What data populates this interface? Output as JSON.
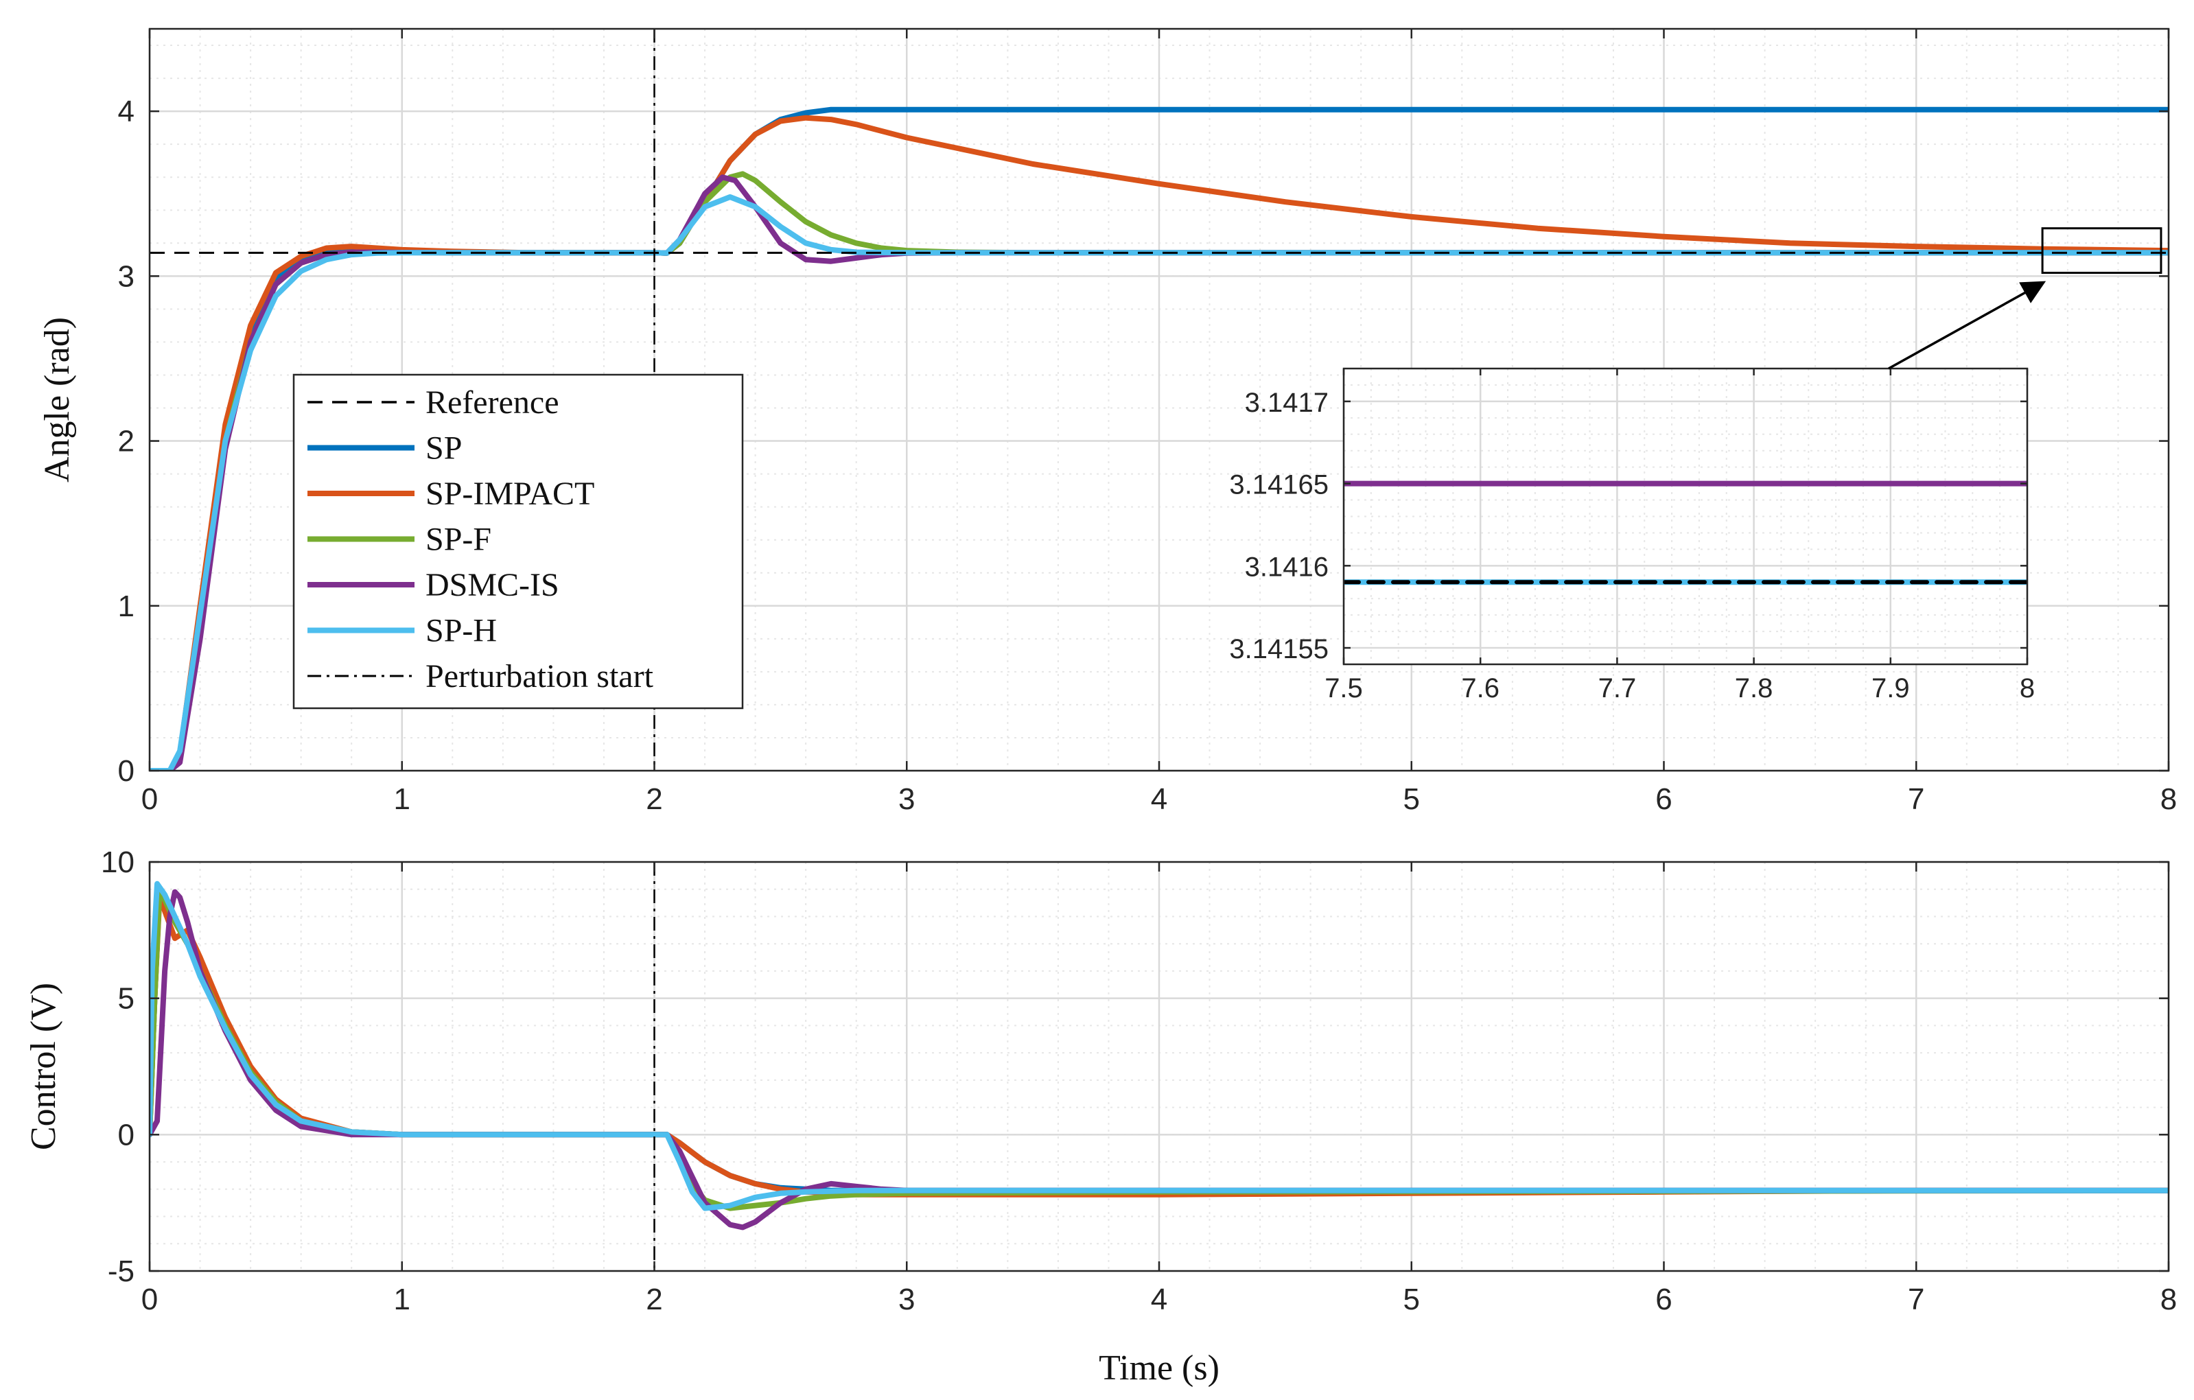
{
  "colors": {
    "SP": "#0072BD",
    "SP-IMPACT": "#D95319",
    "SP-F": "#77AC30",
    "DSMC-IS": "#7E2F8E",
    "SP-H": "#4DBEEE",
    "Reference": "#000000",
    "grid": "#d9d9d9"
  },
  "chart_data": [
    {
      "type": "line",
      "id": "angle",
      "title": "",
      "xlabel": "",
      "ylabel": "Angle (rad)",
      "xlim": [
        0,
        8
      ],
      "ylim": [
        0,
        4.5
      ],
      "xticks": [
        0,
        1,
        2,
        3,
        4,
        5,
        6,
        7,
        8
      ],
      "xtick_labels": [
        "0",
        "1",
        "2",
        "3",
        "4",
        "5",
        "6",
        "7",
        "8"
      ],
      "yticks": [
        0,
        1,
        2,
        3,
        4
      ],
      "ytick_labels": [
        "0",
        "1",
        "2",
        "3",
        "4"
      ],
      "grid": true,
      "legend": {
        "placement": "center-left",
        "entries": [
          "Reference",
          "SP",
          "SP-IMPACT",
          "SP-F",
          "DSMC-IS",
          "SP-H",
          "Perturbation start"
        ]
      },
      "reference": {
        "name": "Reference",
        "value": 3.1416,
        "style": "dashed"
      },
      "vline": {
        "name": "Perturbation start",
        "x": 2,
        "style": "dashdot"
      },
      "series": [
        {
          "name": "SP",
          "x": [
            0,
            0.08,
            0.12,
            0.2,
            0.3,
            0.4,
            0.5,
            0.6,
            0.7,
            0.8,
            0.9,
            1.0,
            1.2,
            1.5,
            2.0,
            2.05,
            2.1,
            2.2,
            2.3,
            2.4,
            2.5,
            2.6,
            2.7,
            2.8,
            3.0,
            4.0,
            5.0,
            6.0,
            7.0,
            8.0
          ],
          "values": [
            0,
            0,
            0.1,
            0.95,
            2.05,
            2.65,
            2.98,
            3.1,
            3.16,
            3.17,
            3.16,
            3.15,
            3.145,
            3.142,
            3.142,
            3.14,
            3.2,
            3.45,
            3.7,
            3.86,
            3.95,
            3.99,
            4.01,
            4.01,
            4.01,
            4.01,
            4.01,
            4.01,
            4.01,
            4.01
          ]
        },
        {
          "name": "SP-IMPACT",
          "x": [
            0,
            0.08,
            0.12,
            0.2,
            0.3,
            0.4,
            0.5,
            0.6,
            0.7,
            0.8,
            0.9,
            1.0,
            1.2,
            1.5,
            2.0,
            2.05,
            2.1,
            2.2,
            2.3,
            2.4,
            2.5,
            2.6,
            2.7,
            2.8,
            3.0,
            3.5,
            4.0,
            4.5,
            5.0,
            5.5,
            6.0,
            6.5,
            7.0,
            7.5,
            8.0
          ],
          "values": [
            0,
            0,
            0.1,
            1.0,
            2.1,
            2.7,
            3.02,
            3.12,
            3.17,
            3.18,
            3.17,
            3.16,
            3.15,
            3.142,
            3.142,
            3.14,
            3.2,
            3.45,
            3.7,
            3.86,
            3.94,
            3.96,
            3.95,
            3.92,
            3.84,
            3.68,
            3.56,
            3.45,
            3.36,
            3.29,
            3.24,
            3.2,
            3.18,
            3.165,
            3.155
          ]
        },
        {
          "name": "SP-F",
          "x": [
            0,
            0.08,
            0.12,
            0.2,
            0.3,
            0.4,
            0.5,
            0.6,
            0.7,
            0.8,
            0.9,
            1.0,
            1.2,
            1.5,
            2.0,
            2.05,
            2.1,
            2.2,
            2.3,
            2.35,
            2.4,
            2.5,
            2.6,
            2.7,
            2.8,
            2.9,
            3.0,
            3.2,
            3.5,
            4.0,
            8.0
          ],
          "values": [
            0,
            0,
            0.08,
            0.9,
            2.0,
            2.6,
            2.95,
            3.08,
            3.13,
            3.145,
            3.145,
            3.143,
            3.142,
            3.142,
            3.142,
            3.14,
            3.2,
            3.45,
            3.6,
            3.62,
            3.58,
            3.45,
            3.33,
            3.25,
            3.2,
            3.17,
            3.155,
            3.145,
            3.142,
            3.142,
            3.142
          ]
        },
        {
          "name": "DSMC-IS",
          "x": [
            0,
            0.08,
            0.12,
            0.2,
            0.3,
            0.4,
            0.5,
            0.6,
            0.7,
            0.8,
            0.9,
            1.0,
            1.2,
            1.5,
            2.0,
            2.05,
            2.1,
            2.2,
            2.27,
            2.32,
            2.4,
            2.5,
            2.6,
            2.7,
            2.8,
            2.9,
            3.0,
            3.2,
            4.0,
            8.0
          ],
          "values": [
            0,
            0,
            0.05,
            0.8,
            1.95,
            2.6,
            2.95,
            3.08,
            3.13,
            3.145,
            3.145,
            3.143,
            3.142,
            3.142,
            3.142,
            3.14,
            3.22,
            3.5,
            3.6,
            3.58,
            3.42,
            3.2,
            3.1,
            3.09,
            3.11,
            3.13,
            3.14,
            3.142,
            3.142,
            3.142
          ]
        },
        {
          "name": "SP-H",
          "x": [
            0,
            0.08,
            0.12,
            0.2,
            0.3,
            0.4,
            0.5,
            0.6,
            0.7,
            0.8,
            0.9,
            1.0,
            1.2,
            1.5,
            2.0,
            2.05,
            2.1,
            2.2,
            2.3,
            2.4,
            2.5,
            2.6,
            2.7,
            2.8,
            3.0,
            4.0,
            8.0
          ],
          "values": [
            0,
            0,
            0.12,
            0.95,
            2.0,
            2.55,
            2.88,
            3.03,
            3.1,
            3.13,
            3.14,
            3.142,
            3.142,
            3.142,
            3.142,
            3.14,
            3.22,
            3.42,
            3.48,
            3.42,
            3.3,
            3.2,
            3.16,
            3.145,
            3.142,
            3.142,
            3.142
          ]
        }
      ]
    },
    {
      "type": "line",
      "id": "angle-zoom-inset",
      "title": "",
      "xlabel": "",
      "ylabel": "",
      "xlim": [
        7.5,
        8
      ],
      "ylim": [
        3.14154,
        3.14172
      ],
      "xticks": [
        7.5,
        7.6,
        7.7,
        7.8,
        7.9,
        8
      ],
      "xtick_labels": [
        "7.5",
        "7.6",
        "7.7",
        "7.8",
        "7.9",
        "8"
      ],
      "yticks": [
        3.14155,
        3.1416,
        3.14165,
        3.1417
      ],
      "ytick_labels": [
        "3.14155",
        "3.1416",
        "3.14165",
        "3.1417"
      ],
      "grid": true,
      "series": [
        {
          "name": "DSMC-IS",
          "x": [
            7.5,
            8
          ],
          "values": [
            3.14165,
            3.14165
          ]
        },
        {
          "name": "SP-H",
          "x": [
            7.5,
            8
          ],
          "values": [
            3.14159,
            3.14159
          ]
        },
        {
          "name": "Reference",
          "x": [
            7.5,
            8
          ],
          "values": [
            3.14159,
            3.14159
          ]
        }
      ]
    },
    {
      "type": "line",
      "id": "control",
      "title": "",
      "xlabel": "Time (s)",
      "ylabel": "Control (V)",
      "xlim": [
        0,
        8
      ],
      "ylim": [
        -5,
        10
      ],
      "xticks": [
        0,
        1,
        2,
        3,
        4,
        5,
        6,
        7,
        8
      ],
      "xtick_labels": [
        "0",
        "1",
        "2",
        "3",
        "4",
        "5",
        "6",
        "7",
        "8"
      ],
      "yticks": [
        -5,
        0,
        5,
        10
      ],
      "ytick_labels": [
        "-5",
        "0",
        "5",
        "10"
      ],
      "grid": true,
      "vline": {
        "name": "Perturbation start",
        "x": 2,
        "style": "dashdot"
      },
      "series": [
        {
          "name": "SP",
          "x": [
            0,
            0.02,
            0.04,
            0.06,
            0.1,
            0.15,
            0.2,
            0.3,
            0.4,
            0.5,
            0.6,
            0.8,
            1.0,
            2.0,
            2.05,
            2.1,
            2.2,
            2.3,
            2.4,
            2.5,
            2.6,
            2.7,
            2.8,
            3.0,
            4.0,
            6.0,
            8.0
          ],
          "values": [
            0,
            5,
            9,
            8.6,
            7.8,
            7,
            6,
            4,
            2.3,
            1.2,
            0.5,
            0.1,
            0,
            0,
            0,
            -0.3,
            -1,
            -1.5,
            -1.8,
            -1.95,
            -2,
            -2.05,
            -2.05,
            -2.05,
            -2.05,
            -2.05,
            -2.05
          ]
        },
        {
          "name": "SP-IMPACT",
          "x": [
            0,
            0.02,
            0.04,
            0.06,
            0.1,
            0.15,
            0.2,
            0.3,
            0.4,
            0.5,
            0.6,
            0.8,
            1.0,
            2.0,
            2.05,
            2.1,
            2.2,
            2.3,
            2.4,
            2.5,
            2.6,
            2.7,
            2.8,
            3.0,
            4.0,
            5.0,
            6.0,
            7.0,
            8.0
          ],
          "values": [
            0,
            5,
            8.8,
            8.2,
            7.2,
            7.5,
            6.5,
            4.3,
            2.5,
            1.3,
            0.6,
            0.1,
            0,
            0,
            0,
            -0.3,
            -1,
            -1.5,
            -1.8,
            -2,
            -2.1,
            -2.15,
            -2.2,
            -2.2,
            -2.2,
            -2.15,
            -2.1,
            -2.05,
            -2.05
          ]
        },
        {
          "name": "SP-F",
          "x": [
            0,
            0.02,
            0.04,
            0.06,
            0.1,
            0.15,
            0.2,
            0.3,
            0.4,
            0.5,
            0.6,
            0.8,
            1.0,
            2.0,
            2.05,
            2.1,
            2.15,
            2.2,
            2.3,
            2.4,
            2.5,
            2.6,
            2.7,
            2.8,
            3.0,
            4.0,
            8.0
          ],
          "values": [
            0,
            5,
            9,
            8.6,
            7.8,
            7,
            6,
            4,
            2.3,
            1.2,
            0.5,
            0.1,
            0,
            0,
            0,
            -0.8,
            -1.8,
            -2.4,
            -2.7,
            -2.6,
            -2.5,
            -2.35,
            -2.25,
            -2.2,
            -2.15,
            -2.1,
            -2.05
          ]
        },
        {
          "name": "DSMC-IS",
          "x": [
            0,
            0.03,
            0.06,
            0.08,
            0.1,
            0.12,
            0.15,
            0.2,
            0.3,
            0.4,
            0.5,
            0.6,
            0.8,
            1.0,
            2.0,
            2.05,
            2.1,
            2.2,
            2.3,
            2.35,
            2.4,
            2.5,
            2.6,
            2.7,
            2.8,
            2.9,
            3.0,
            3.5,
            8.0
          ],
          "values": [
            0,
            0.5,
            6,
            8,
            8.9,
            8.7,
            7.8,
            6,
            3.8,
            2,
            0.9,
            0.3,
            0,
            0,
            0,
            0,
            -0.6,
            -2.5,
            -3.3,
            -3.4,
            -3.2,
            -2.5,
            -2,
            -1.8,
            -1.9,
            -2,
            -2.05,
            -2.05,
            -2.05
          ]
        },
        {
          "name": "SP-H",
          "x": [
            0,
            0.01,
            0.03,
            0.06,
            0.1,
            0.15,
            0.2,
            0.3,
            0.4,
            0.5,
            0.6,
            0.8,
            1.0,
            2.0,
            2.05,
            2.1,
            2.15,
            2.2,
            2.3,
            2.4,
            2.5,
            2.6,
            2.8,
            3.0,
            4.0,
            8.0
          ],
          "values": [
            0,
            6,
            9.2,
            8.8,
            8,
            7,
            5.8,
            3.9,
            2.2,
            1.1,
            0.5,
            0.1,
            0,
            0,
            0,
            -1,
            -2.1,
            -2.7,
            -2.6,
            -2.3,
            -2.15,
            -2.1,
            -2.05,
            -2.05,
            -2.05,
            -2.05
          ]
        }
      ]
    }
  ]
}
